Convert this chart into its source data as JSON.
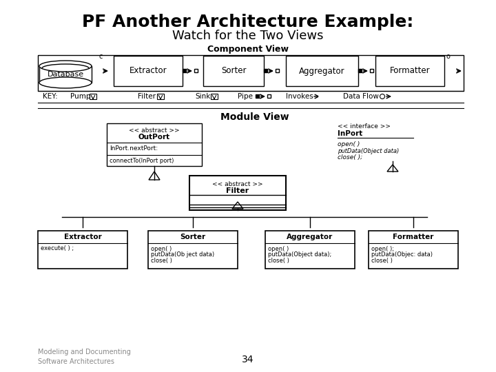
{
  "title": "PF Another Architecture Example:",
  "subtitle": "Watch for the Two Views",
  "title_fontsize": 18,
  "subtitle_fontsize": 13,
  "footer_left": "Modeling and Documenting\nSoftware Architectures",
  "footer_center": "34",
  "bg_color": "#ffffff",
  "component_view_label": "Component View",
  "module_view_label": "Module View"
}
